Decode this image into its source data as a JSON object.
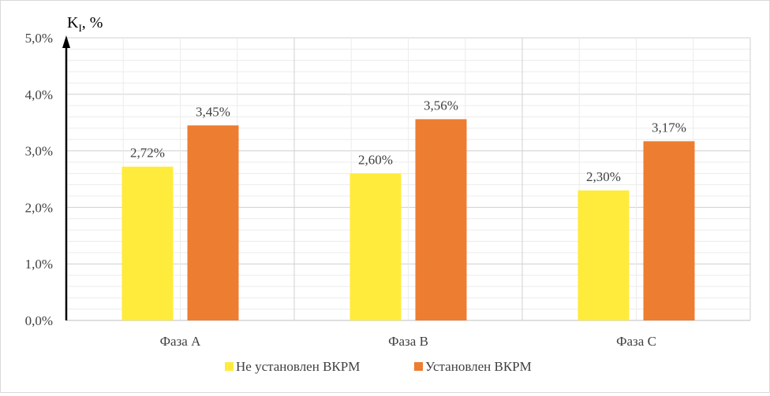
{
  "chart_data": {
    "type": "bar",
    "title": "",
    "ylabel_main": "K",
    "ylabel_sub": "I",
    "ylabel_unit": ", %",
    "categories": [
      "Фаза А",
      "Фаза В",
      "Фаза С"
    ],
    "series": [
      {
        "name": "Не установлен ВКРМ",
        "color": "#ffeb3b",
        "values": [
          2.72,
          2.6,
          2.3
        ],
        "labels": [
          "2,72%",
          "2,60%",
          "2,30%"
        ]
      },
      {
        "name": "Установлен ВКРМ",
        "color": "#ed7d31",
        "values": [
          3.45,
          3.56,
          3.17
        ],
        "labels": [
          "3,45%",
          "3,56%",
          "3,17%"
        ]
      }
    ],
    "ylim": [
      0,
      5
    ],
    "yticks": [
      0,
      1,
      2,
      3,
      4,
      5
    ],
    "ytick_labels": [
      "0,0%",
      "1,0%",
      "2,0%",
      "3,0%",
      "4,0%",
      "5,0%"
    ],
    "grid": true,
    "legend_position": "bottom"
  }
}
